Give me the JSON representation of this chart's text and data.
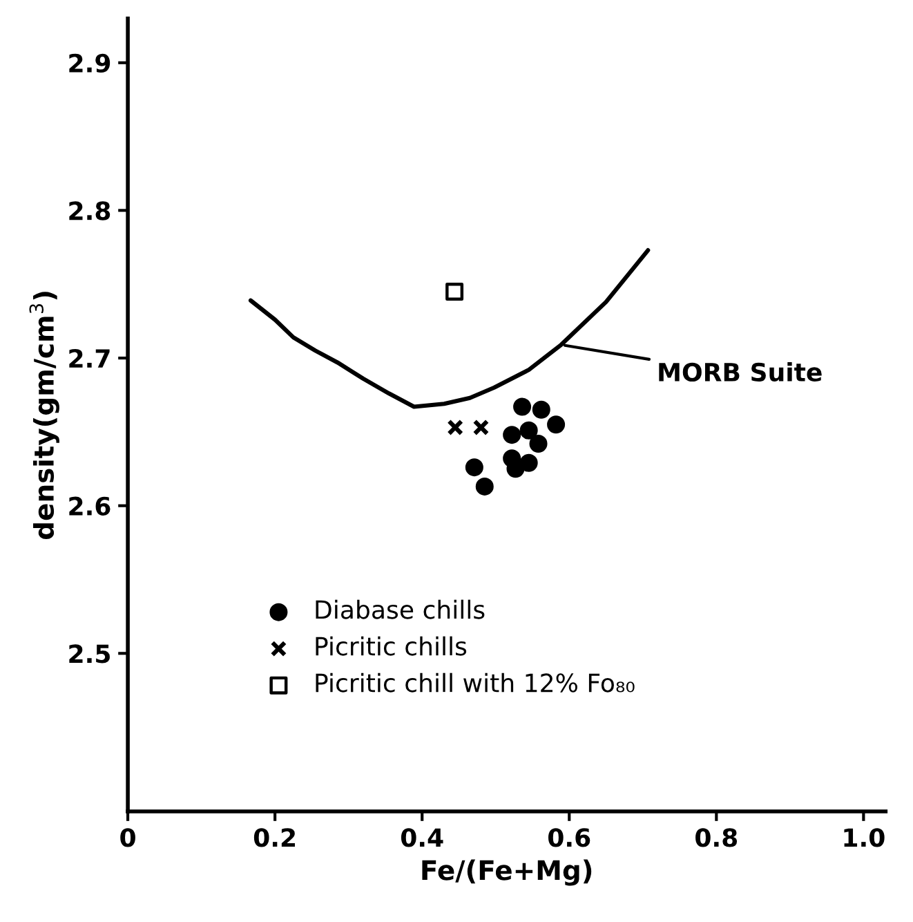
{
  "chart_data": {
    "type": "scatter",
    "xlabel": "Fe/(Fe+Mg)",
    "ylabel": "density(gm/cm$^{3}$)",
    "xlim": [
      0,
      1.03
    ],
    "ylim": [
      2.393,
      2.93
    ],
    "xticks": [
      0,
      0.2,
      0.4,
      0.6,
      0.8,
      {
        "value": 1.0,
        "label": "1.0"
      }
    ],
    "yticks": [
      2.5,
      2.6,
      2.7,
      2.8,
      2.9
    ],
    "grid": false,
    "legend": "lower left",
    "series": [
      {
        "name": "Diabase chills",
        "marker": "circle",
        "color": "#000000",
        "x": [
          0.471,
          0.485,
          0.536,
          0.562,
          0.582,
          0.522,
          0.545,
          0.522,
          0.545,
          0.558,
          0.527
        ],
        "values": [
          2.626,
          2.613,
          2.667,
          2.665,
          2.655,
          2.648,
          2.651,
          2.632,
          2.629,
          2.642,
          2.625
        ]
      },
      {
        "name": "Picritic chills",
        "marker": "cross",
        "color": "#000000",
        "x": [
          0.445,
          0.48
        ],
        "values": [
          2.653,
          2.653
        ]
      },
      {
        "name": "Picritic chill with 12% Fo₈₀",
        "marker": "square",
        "color": "#000000",
        "x": [
          0.444
        ],
        "values": [
          2.745
        ]
      },
      {
        "type": "line",
        "color": "#000000",
        "line_style": "solid",
        "x": [
          0.167,
          0.2,
          0.225,
          0.255,
          0.285,
          0.32,
          0.355,
          0.389,
          0.43,
          0.465,
          0.498,
          0.545,
          0.589,
          0.65,
          0.707
        ],
        "values": [
          2.739,
          2.726,
          2.714,
          2.705,
          2.697,
          2.686,
          2.676,
          2.667,
          2.669,
          2.673,
          2.68,
          2.692,
          2.709,
          2.738,
          2.773
        ]
      }
    ],
    "annotations": [
      {
        "text": "MORB Suite",
        "x": 0.589,
        "y": 2.709
      }
    ]
  }
}
